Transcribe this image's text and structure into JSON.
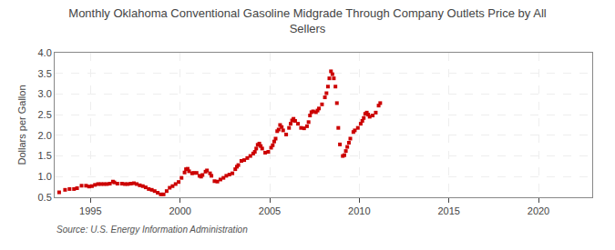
{
  "chart_data": {
    "type": "scatter",
    "title": "Monthly Oklahoma Conventional Gasoline Midgrade Through Company Outlets Price by All\nSellers",
    "ylabel": "Dollars per Gallon",
    "source": "Source: U.S. Energy Information Administration",
    "color": "#CC0000",
    "marker": "square",
    "grid": true,
    "xlim": [
      1993.0,
      2023.0
    ],
    "ylim": [
      0.5,
      4.0
    ],
    "xticks": [
      1995,
      2000,
      2005,
      2010,
      2015,
      2020
    ],
    "yticks": [
      0.5,
      {
        "value": 1.0,
        "label": "1.0"
      },
      1.5,
      {
        "value": 2.0,
        "label": "2.0"
      },
      2.5,
      {
        "value": 3.0,
        "label": "3.0"
      },
      3.5,
      {
        "value": 4.0,
        "label": "4.0"
      }
    ],
    "x": [
      1993.25,
      1993.58,
      1993.83,
      1994.08,
      1994.25,
      1994.5,
      1994.75,
      1994.92,
      1995.08,
      1995.25,
      1995.42,
      1995.58,
      1995.75,
      1995.92,
      1996.08,
      1996.25,
      1996.33,
      1996.5,
      1996.75,
      1996.92,
      1997.08,
      1997.25,
      1997.42,
      1997.58,
      1997.75,
      1997.92,
      1998.08,
      1998.25,
      1998.42,
      1998.58,
      1998.75,
      1998.92,
      1999.08,
      1999.25,
      1999.42,
      1999.58,
      1999.75,
      1999.92,
      2000.08,
      2000.25,
      2000.33,
      2000.42,
      2000.5,
      2000.67,
      2000.75,
      2000.92,
      2001.08,
      2001.17,
      2001.25,
      2001.42,
      2001.5,
      2001.67,
      2001.75,
      2001.92,
      2002.08,
      2002.25,
      2002.42,
      2002.58,
      2002.75,
      2002.92,
      2003.08,
      2003.17,
      2003.25,
      2003.42,
      2003.58,
      2003.75,
      2003.92,
      2004.08,
      2004.17,
      2004.25,
      2004.33,
      2004.42,
      2004.5,
      2004.58,
      2004.75,
      2004.92,
      2005.08,
      2005.17,
      2005.25,
      2005.33,
      2005.42,
      2005.5,
      2005.58,
      2005.67,
      2005.75,
      2005.92,
      2006.08,
      2006.17,
      2006.25,
      2006.33,
      2006.42,
      2006.58,
      2006.75,
      2006.92,
      2007.08,
      2007.17,
      2007.25,
      2007.33,
      2007.42,
      2007.58,
      2007.67,
      2007.75,
      2007.92,
      2008.08,
      2008.17,
      2008.25,
      2008.33,
      2008.42,
      2008.5,
      2008.58,
      2008.67,
      2008.75,
      2008.83,
      2008.92,
      2009.08,
      2009.17,
      2009.25,
      2009.33,
      2009.42,
      2009.5,
      2009.67,
      2009.75,
      2009.92,
      2010.08,
      2010.17,
      2010.25,
      2010.33,
      2010.42,
      2010.5,
      2010.58,
      2010.75,
      2010.92,
      2011.08,
      2011.17
    ],
    "values": [
      0.62,
      0.68,
      0.7,
      0.7,
      0.72,
      0.78,
      0.78,
      0.76,
      0.77,
      0.8,
      0.82,
      0.82,
      0.82,
      0.82,
      0.83,
      0.88,
      0.86,
      0.83,
      0.83,
      0.82,
      0.82,
      0.83,
      0.84,
      0.82,
      0.79,
      0.77,
      0.74,
      0.7,
      0.68,
      0.65,
      0.61,
      0.57,
      0.57,
      0.65,
      0.73,
      0.77,
      0.82,
      0.87,
      0.97,
      1.1,
      1.18,
      1.19,
      1.13,
      1.08,
      1.09,
      1.09,
      1.02,
      1.0,
      1.04,
      1.12,
      1.15,
      1.08,
      1.02,
      0.89,
      0.88,
      0.93,
      0.97,
      1.02,
      1.05,
      1.08,
      1.18,
      1.24,
      1.28,
      1.38,
      1.4,
      1.45,
      1.5,
      1.56,
      1.6,
      1.68,
      1.77,
      1.8,
      1.74,
      1.68,
      1.58,
      1.6,
      1.7,
      1.76,
      1.85,
      1.92,
      2.1,
      2.14,
      2.25,
      2.2,
      2.12,
      2.02,
      2.18,
      2.28,
      2.36,
      2.4,
      2.35,
      2.28,
      2.18,
      2.17,
      2.22,
      2.32,
      2.48,
      2.56,
      2.58,
      2.56,
      2.6,
      2.65,
      2.75,
      2.92,
      3.02,
      3.18,
      3.38,
      3.55,
      3.48,
      3.38,
      3.18,
      2.78,
      2.18,
      1.78,
      1.5,
      1.52,
      1.62,
      1.72,
      1.82,
      1.92,
      2.08,
      2.12,
      2.18,
      2.28,
      2.35,
      2.42,
      2.52,
      2.55,
      2.5,
      2.45,
      2.48,
      2.55,
      2.72,
      2.78
    ]
  }
}
